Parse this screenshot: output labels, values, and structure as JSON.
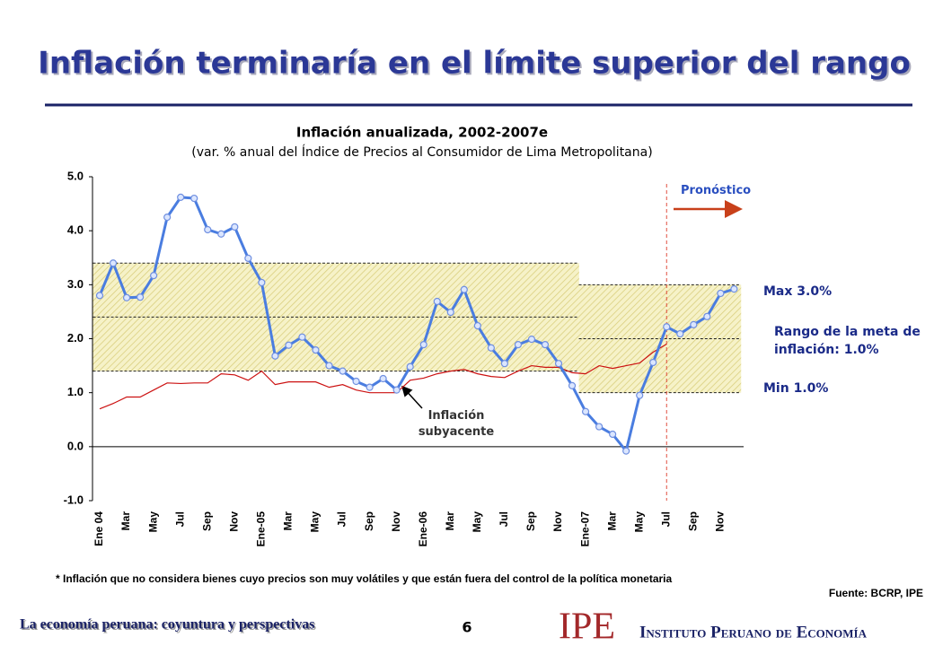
{
  "slide_title": "Inflación terminaría en el límite superior del rango",
  "chart_data": {
    "type": "line",
    "title": "Inflación anualizada, 2002-2007e",
    "subtitle": "(var. % anual del Índice de Precios al Consumidor de Lima Metropolitana)",
    "categories": [
      "Ene 04",
      null,
      "Mar",
      null,
      "May",
      null,
      "Jul",
      null,
      "Sep",
      null,
      "Nov",
      null,
      "Ene-05",
      null,
      "Mar",
      null,
      "May",
      null,
      "Jul",
      null,
      "Sep",
      null,
      "Nov",
      null,
      "Ene-06",
      null,
      "Mar",
      null,
      "May",
      null,
      "Jul",
      null,
      "Sep",
      null,
      "Nov",
      null,
      "Ene-07",
      null,
      "Mar",
      null,
      "May",
      null,
      "Jul",
      null,
      "Sep",
      null,
      "Nov",
      null
    ],
    "series": [
      {
        "color": "#4a7de0",
        "values": [
          2.8,
          3.4,
          2.76,
          2.77,
          3.17,
          4.25,
          4.62,
          4.6,
          4.02,
          3.94,
          4.07,
          3.49,
          3.04,
          1.68,
          1.88,
          2.03,
          1.79,
          1.5,
          1.4,
          1.21,
          1.1,
          1.26,
          1.05,
          1.48,
          1.89,
          2.69,
          2.49,
          2.91,
          2.24,
          1.83,
          1.54,
          1.89,
          1.99,
          1.89,
          1.54,
          1.13,
          0.65,
          0.37,
          0.23,
          -0.08,
          0.95,
          1.56,
          2.22,
          2.09,
          2.26,
          2.41,
          2.84,
          2.92
        ]
      },
      {
        "name": "Inflación subyacente",
        "color": "#cc1111",
        "values": [
          0.7,
          0.8,
          0.92,
          0.92,
          1.05,
          1.18,
          1.17,
          1.18,
          1.18,
          1.35,
          1.33,
          1.23,
          1.4,
          1.15,
          1.2,
          1.2,
          1.2,
          1.1,
          1.15,
          1.05,
          1.0,
          1.0,
          1.0,
          1.23,
          1.27,
          1.35,
          1.4,
          1.43,
          1.35,
          1.3,
          1.28,
          1.4,
          1.5,
          1.47,
          1.47,
          1.37,
          1.35,
          1.5,
          1.45,
          1.5,
          1.55,
          1.75,
          1.9,
          null,
          null,
          null,
          null,
          null
        ]
      }
    ],
    "target_band": {
      "low": [
        1.4,
        1.4,
        1.4,
        1.4,
        1.4,
        1.4,
        1.4,
        1.4,
        1.4,
        1.4,
        1.4,
        1.4,
        1.4,
        1.4,
        1.4,
        1.4,
        1.4,
        1.4,
        1.4,
        1.4,
        1.4,
        1.4,
        1.4,
        1.4,
        1.4,
        1.4,
        1.4,
        1.4,
        1.4,
        1.4,
        1.4,
        1.4,
        1.4,
        1.4,
        1.4,
        1.4,
        1.0,
        1.0,
        1.0,
        1.0,
        1.0,
        1.0,
        1.0,
        1.0,
        1.0,
        1.0,
        1.0,
        1.0
      ],
      "center": [
        2.4,
        2.4,
        2.4,
        2.4,
        2.4,
        2.4,
        2.4,
        2.4,
        2.4,
        2.4,
        2.4,
        2.4,
        2.4,
        2.4,
        2.4,
        2.4,
        2.4,
        2.4,
        2.4,
        2.4,
        2.4,
        2.4,
        2.4,
        2.4,
        2.4,
        2.4,
        2.4,
        2.4,
        2.4,
        2.4,
        2.4,
        2.4,
        2.4,
        2.4,
        2.4,
        2.4,
        2.0,
        2.0,
        2.0,
        2.0,
        2.0,
        2.0,
        2.0,
        2.0,
        2.0,
        2.0,
        2.0,
        2.0
      ],
      "high": [
        3.4,
        3.4,
        3.4,
        3.4,
        3.4,
        3.4,
        3.4,
        3.4,
        3.4,
        3.4,
        3.4,
        3.4,
        3.4,
        3.4,
        3.4,
        3.4,
        3.4,
        3.4,
        3.4,
        3.4,
        3.4,
        3.4,
        3.4,
        3.4,
        3.4,
        3.4,
        3.4,
        3.4,
        3.4,
        3.4,
        3.4,
        3.4,
        3.4,
        3.4,
        3.4,
        3.4,
        3.0,
        3.0,
        3.0,
        3.0,
        3.0,
        3.0,
        3.0,
        3.0,
        3.0,
        3.0,
        3.0,
        3.0
      ]
    },
    "forecast": {
      "label": "Pronóstico",
      "from": 42
    },
    "ylim": [
      -1,
      5
    ],
    "yticks": [
      {
        "value": -1,
        "label": "-1.0"
      },
      {
        "value": 0,
        "label": "0.0"
      },
      {
        "value": 1,
        "label": "1.0"
      },
      {
        "value": 2,
        "label": "2.0"
      },
      {
        "value": 3,
        "label": "3.0"
      },
      {
        "value": 4,
        "label": "4.0"
      },
      {
        "value": 5,
        "label": "5.0"
      }
    ],
    "annotations": {
      "max": "Max 3.0%",
      "range": "Rango de la meta de inflación: 1.0%",
      "min": "Min 1.0%"
    }
  },
  "footnote": "* Inflación que no considera bienes cuyo precios son muy volátiles y que están fuera del control de la política monetaria",
  "source": "Fuente: BCRP, IPE",
  "footer": {
    "text": "La economía peruana: coyuntura y perspectivas",
    "page": "6",
    "logo": "IPE",
    "institute": "Instituto Peruano de Economía"
  }
}
